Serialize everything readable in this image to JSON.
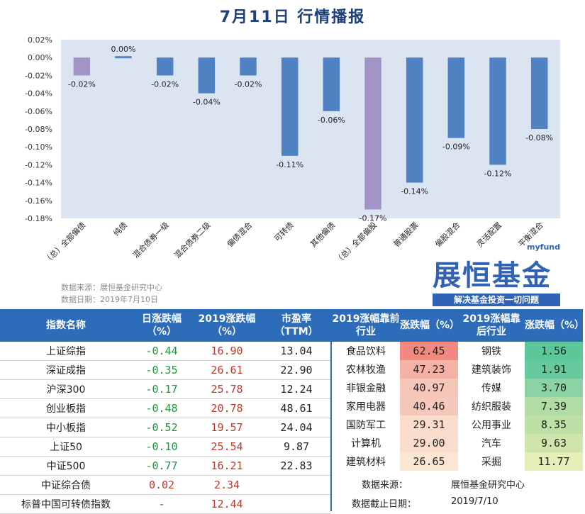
{
  "title": "7月11日  行情播报",
  "chart_data": {
    "type": "bar",
    "categories": [
      "（总）全部偏债",
      "纯债",
      "混合债券一级",
      "混合债券二级",
      "偏债混合",
      "可转债",
      "其他偏债",
      "（总）全部偏股",
      "普通股票",
      "偏股混合",
      "灵活配置",
      "平衡混合"
    ],
    "values": [
      -0.02,
      0.0,
      -0.02,
      -0.04,
      -0.02,
      -0.11,
      -0.06,
      -0.17,
      -0.14,
      -0.09,
      -0.12,
      -0.08
    ],
    "data_labels": [
      "-0.02%",
      "0.00%",
      "-0.02%",
      "-0.04%",
      "-0.02%",
      "-0.11%",
      "-0.06%",
      "-0.17%",
      "-0.14%",
      "-0.09%",
      "-0.12%",
      "-0.08%"
    ],
    "highlight": [
      true,
      false,
      false,
      false,
      false,
      false,
      false,
      true,
      false,
      false,
      false,
      false
    ],
    "ylim": [
      -0.18,
      0.02
    ],
    "yticks": [
      0.02,
      0.0,
      -0.02,
      -0.04,
      -0.06,
      -0.08,
      -0.1,
      -0.12,
      -0.14,
      -0.16,
      -0.18
    ],
    "ytick_labels": [
      "0.02%",
      "0.00%",
      "-0.02%",
      "-0.04%",
      "-0.06%",
      "-0.08%",
      "-0.10%",
      "-0.12%",
      "-0.14%",
      "-0.16%",
      "-0.18%"
    ],
    "colors": {
      "bar": "#4f81c3",
      "highlight": "#a394c8",
      "plot_bg": "#dbe5f1"
    },
    "grid": false,
    "legend": "none"
  },
  "source": {
    "line1": "数据来源：展恒基金研究中心",
    "line2": "数据日期：2019年7月10日"
  },
  "logo": {
    "brand": "myfund",
    "name": "展恒基金",
    "slogan": "解决基金投资一切问题"
  },
  "index_table": {
    "headers": [
      "指数名称",
      "日涨跌幅（%）",
      "2019涨跌幅（%）",
      "市盈率（TTM）"
    ],
    "rows": [
      {
        "name": "上证综指",
        "day": "-0.44",
        "ytd": "16.90",
        "pe": "13.04"
      },
      {
        "name": "深证成指",
        "day": "-0.35",
        "ytd": "26.61",
        "pe": "22.90"
      },
      {
        "name": "沪深300",
        "day": "-0.17",
        "ytd": "25.78",
        "pe": "12.24"
      },
      {
        "name": "创业板指",
        "day": "-0.48",
        "ytd": "20.78",
        "pe": "48.61"
      },
      {
        "name": "中小板指",
        "day": "-0.52",
        "ytd": "19.57",
        "pe": "24.04"
      },
      {
        "name": "上证50",
        "day": "-0.10",
        "ytd": "25.54",
        "pe": "9.87"
      },
      {
        "name": "中证500",
        "day": "-0.77",
        "ytd": "16.21",
        "pe": "22.83"
      },
      {
        "name": "中证综合债",
        "day": "0.02",
        "ytd": "2.34",
        "pe": ""
      },
      {
        "name": "标普中国可转债指数",
        "day": "-",
        "ytd": "12.44",
        "pe": ""
      }
    ]
  },
  "industry_table": {
    "headers": [
      "2019涨幅靠前行业",
      "涨跌幅（%）",
      "2019涨幅靠后行业",
      "涨跌幅（%）"
    ],
    "rows": [
      {
        "top": "食品饮料",
        "top_val": "62.45",
        "top_color": "#f08a80",
        "bottom": "钢铁",
        "bottom_val": "1.56",
        "bottom_color": "#5cc79a"
      },
      {
        "top": "农林牧渔",
        "top_val": "47.23",
        "top_color": "#f4b1a6",
        "bottom": "建筑装饰",
        "bottom_val": "1.91",
        "bottom_color": "#67ca9f"
      },
      {
        "top": "非银金融",
        "top_val": "40.97",
        "top_color": "#f6c6b9",
        "bottom": "传媒",
        "bottom_val": "3.70",
        "bottom_color": "#8bd3a4"
      },
      {
        "top": "家用电器",
        "top_val": "40.46",
        "top_color": "#f6c8bb",
        "bottom": "纺织服装",
        "bottom_val": "7.39",
        "bottom_color": "#b1dda4"
      },
      {
        "top": "国防军工",
        "top_val": "29.31",
        "top_color": "#f9dcc9",
        "bottom": "公用事业",
        "bottom_val": "8.35",
        "bottom_color": "#bde0a6"
      },
      {
        "top": "计算机",
        "top_val": "29.00",
        "top_color": "#f9ddca",
        "bottom": "汽车",
        "bottom_val": "9.63",
        "bottom_color": "#cee5ac"
      },
      {
        "top": "建筑材料",
        "top_val": "26.65",
        "top_color": "#fae6d3",
        "bottom": "采掘",
        "bottom_val": "11.77",
        "bottom_color": "#e6edb6"
      }
    ]
  },
  "footer": {
    "source_label": "数据来源：",
    "source_value": "展恒基金研究中心",
    "date_label": "数据截止日期：",
    "date_value": "2019/7/10"
  }
}
